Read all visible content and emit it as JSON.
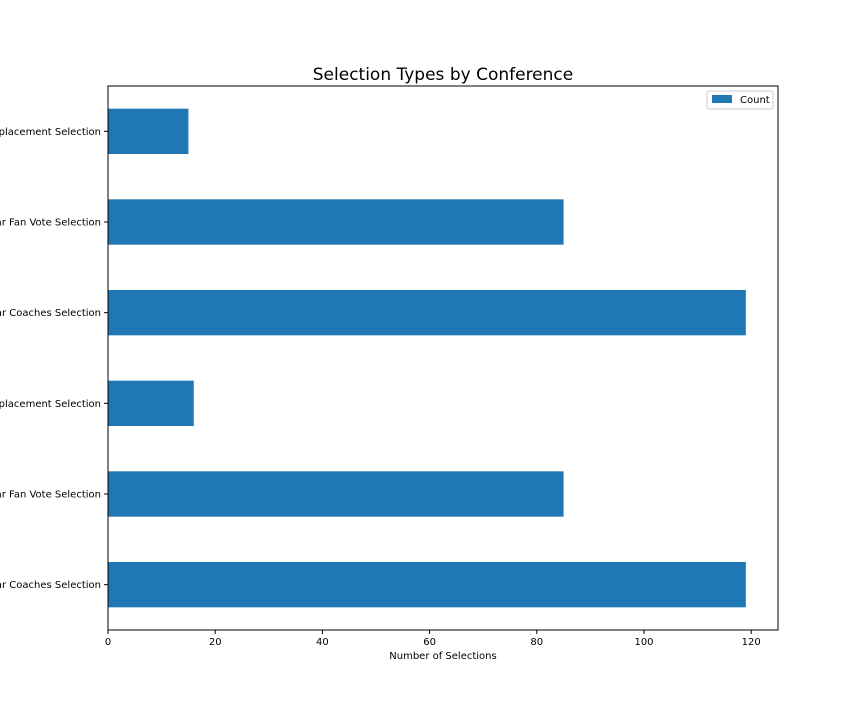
{
  "chart_data": {
    "type": "bar",
    "orientation": "horizontal",
    "title": "Selection Types by Conference",
    "xlabel": "Number of Selections",
    "ylabel": "",
    "xlim": [
      0,
      125
    ],
    "xticks": [
      0,
      20,
      40,
      60,
      80,
      100,
      120
    ],
    "grid": false,
    "legend": {
      "position": "top-right",
      "entries": [
        "Count"
      ]
    },
    "categories": [
      "Western All-Star Coaches Selection",
      "Western All-Star Fan Vote Selection",
      "Western All-Star Replacement Selection",
      "Eastern All-Star Coaches Selection",
      "Eastern All-Star Fan Vote Selection",
      "Eastern All-Star Replacement Selection"
    ],
    "series": [
      {
        "name": "Count",
        "color": "#1f77b4",
        "values": [
          119,
          85,
          16,
          119,
          85,
          15
        ]
      }
    ]
  }
}
